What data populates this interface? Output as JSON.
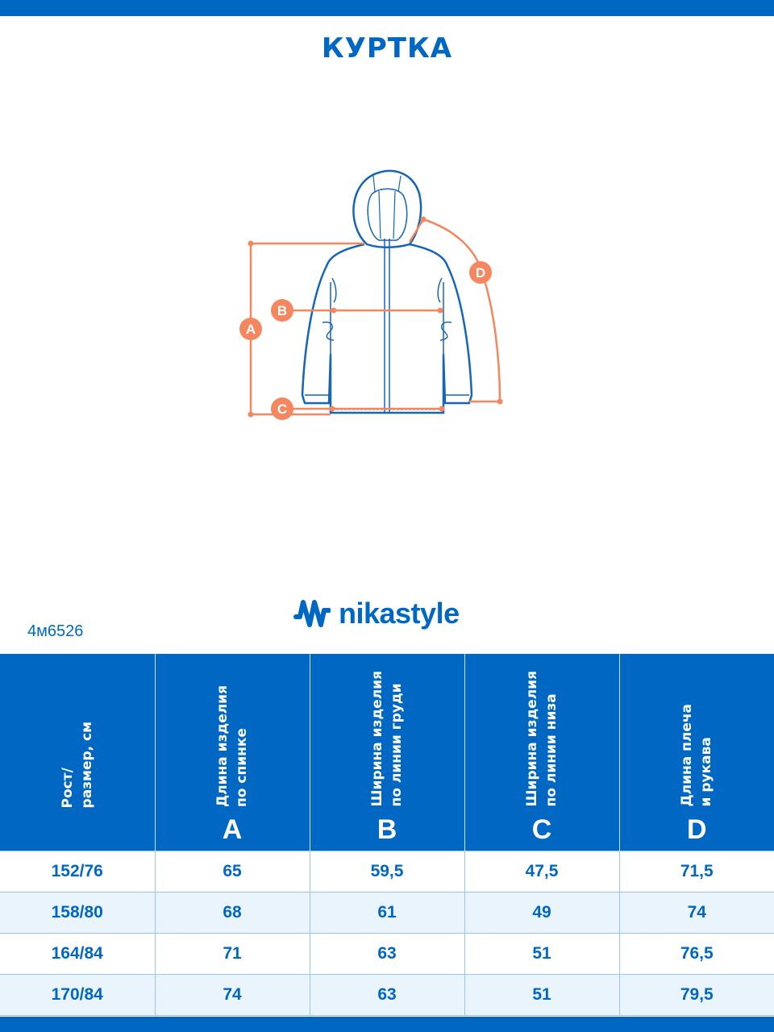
{
  "title": "КУРТКА",
  "diagram_labels": [
    "A",
    "B",
    "C",
    "D"
  ],
  "brand": "nikastyle",
  "article": "4м6526",
  "colors": {
    "brand_blue": "#0067c3",
    "measure_orange": "#f4875f",
    "row_alt": "#eaf4fc"
  },
  "table": {
    "headers": [
      {
        "label": "Рост/\nразмер, см",
        "letter": ""
      },
      {
        "label": "Длина изделия\nпо спинке",
        "letter": "A"
      },
      {
        "label": "Ширина изделия\nпо линии груди",
        "letter": "B"
      },
      {
        "label": "Ширина изделия\nпо линии низа",
        "letter": "C"
      },
      {
        "label": "Длина плеча\nи рукава",
        "letter": "D"
      }
    ],
    "rows": [
      [
        "152/76",
        "65",
        "59,5",
        "47,5",
        "71,5"
      ],
      [
        "158/80",
        "68",
        "61",
        "49",
        "74"
      ],
      [
        "164/84",
        "71",
        "63",
        "51",
        "76,5"
      ],
      [
        "170/84",
        "74",
        "63",
        "51",
        "79,5"
      ]
    ]
  }
}
